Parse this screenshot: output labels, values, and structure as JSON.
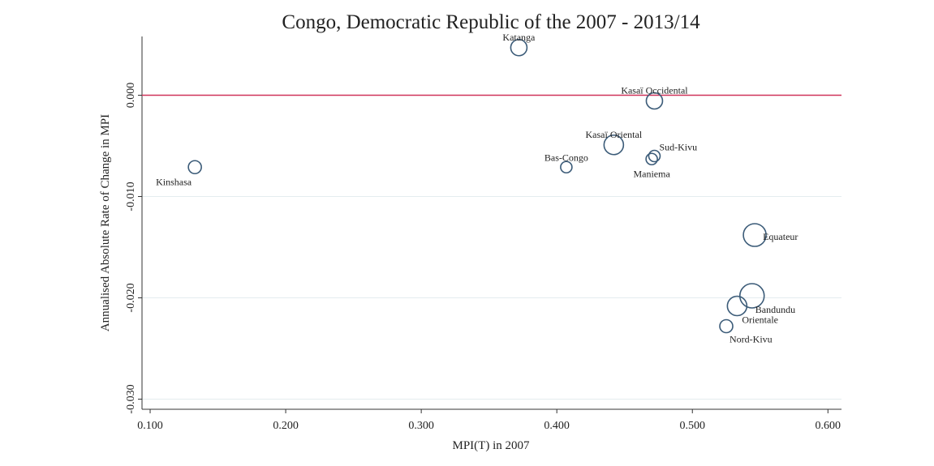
{
  "chart_data": {
    "type": "bubble",
    "title": "Congo, Democratic Republic of the 2007 - 2013/14",
    "x_label": "MPI(T) in 2007",
    "y_label": "Annualised Absolute Rate of Change in MPI",
    "labels": [
      "Katanga",
      "Kasaï Occidental",
      "Kasaï Oriental",
      "Sud-Kivu",
      "Maniema",
      "Bas-Congo",
      "Kinshasa",
      "Equateur",
      "Bandundu",
      "Orientale",
      "Nord-Kivu"
    ],
    "x": [
      0.372,
      0.472,
      0.442,
      0.472,
      0.47,
      0.407,
      0.133,
      0.546,
      0.544,
      0.533,
      0.525
    ],
    "values": [
      0.0047,
      -0.00056,
      -0.0049,
      -0.006,
      -0.0063,
      -0.0071,
      -0.0071,
      -0.0138,
      -0.0198,
      -0.0208,
      -0.0228
    ],
    "sizes": [
      10,
      10,
      12,
      7,
      7,
      7,
      8,
      14,
      15,
      12,
      8
    ],
    "color": "#3b5b78",
    "label_color": "#8b2f3a",
    "ref_line": {
      "value": 0,
      "color": "#d0335a"
    },
    "xlim": [
      0.094,
      0.61
    ],
    "ylim": [
      -0.031,
      0.0058
    ],
    "xticks": [
      {
        "value": 0.1,
        "label": "0.100"
      },
      {
        "value": 0.2,
        "label": "0.200"
      },
      {
        "value": 0.3,
        "label": "0.300"
      },
      {
        "value": 0.4,
        "label": "0.400"
      },
      {
        "value": 0.5,
        "label": "0.500"
      },
      {
        "value": 0.6,
        "label": "0.600"
      }
    ],
    "yticks": [
      {
        "value": 0,
        "label": "0.000"
      },
      {
        "value": -0.01,
        "label": "-0.010"
      },
      {
        "value": -0.02,
        "label": "-0.020"
      },
      {
        "value": -0.03,
        "label": "-0.030"
      }
    ],
    "grid": true
  }
}
